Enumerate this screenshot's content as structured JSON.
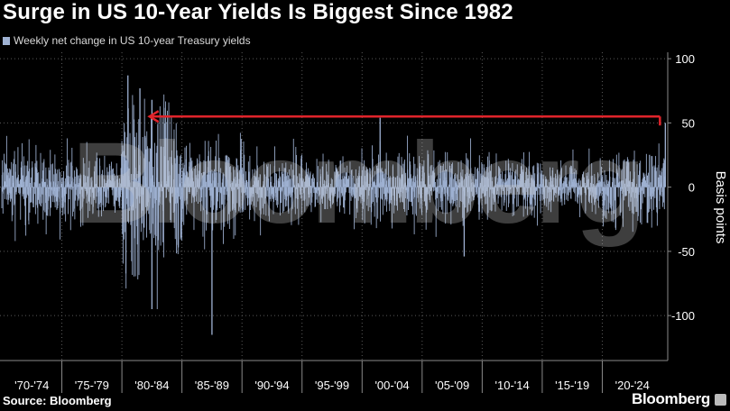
{
  "title": "Surge in US 10-Year Yields Is Biggest Since 1982",
  "source": "Source: Bloomberg",
  "brand": "Bloomberg",
  "watermark": "Bloomberg",
  "colors": {
    "bars": "#9fb2d3",
    "arrow": "#e0242b",
    "grid": "#5a5a5a",
    "background": "#000000"
  },
  "chart_data": {
    "type": "bar",
    "legend": "Weekly net change in US 10-year Treasury yields",
    "legend_position": "top-left",
    "ylabel": "Basis points",
    "ylim": [
      -135,
      105
    ],
    "yticks": [
      100,
      50,
      0,
      -50,
      -100
    ],
    "xlabel_categories": [
      "'70-'74",
      "'75-'79",
      "'80-'84",
      "'85-'89",
      "'90-'94",
      "'95-'99",
      "'00-'04",
      "'05-'09",
      "'10-'14",
      "'15-'19",
      "'20-'24"
    ],
    "x_range": [
      1970,
      2025.3
    ],
    "grid": true,
    "annotation": {
      "type": "arrow",
      "description": "red arrow from latest weekly surge back to the last comparable surge",
      "from_x": 2025.25,
      "to_x": 1982.0,
      "level": 55
    },
    "series": [
      {
        "name": "Weekly net change in US 10-year Treasury yields",
        "values_by_period": [
          {
            "period": "'70-'74",
            "range": [
              -50,
              45
            ],
            "typical_abs": 14
          },
          {
            "period": "'75-'79",
            "range": [
              -35,
              38
            ],
            "typical_abs": 12
          },
          {
            "period": "'80-'84",
            "range": [
              -95,
              87
            ],
            "typical_abs": 30
          },
          {
            "period": "'85-'89",
            "range": [
              -115,
              52
            ],
            "typical_abs": 16
          },
          {
            "period": "'90-'94",
            "range": [
              -40,
              40
            ],
            "typical_abs": 13
          },
          {
            "period": "'95-'99",
            "range": [
              -35,
              42
            ],
            "typical_abs": 11
          },
          {
            "period": "'00-'04",
            "range": [
              -40,
              54
            ],
            "typical_abs": 14
          },
          {
            "period": "'05-'09",
            "range": [
              -54,
              38
            ],
            "typical_abs": 12
          },
          {
            "period": "'10-'14",
            "range": [
              -30,
              40
            ],
            "typical_abs": 11
          },
          {
            "period": "'15-'19",
            "range": [
              -25,
              40
            ],
            "typical_abs": 9
          },
          {
            "period": "'20-'24",
            "range": [
              -35,
              34
            ],
            "typical_abs": 13
          }
        ],
        "notable_points": [
          {
            "date": "1980",
            "value": 87
          },
          {
            "date": "1981",
            "value": 77
          },
          {
            "date": "1982",
            "value": 68
          },
          {
            "date": "1982",
            "value": -95
          },
          {
            "date": "1987",
            "value": -115
          },
          {
            "date": "2001",
            "value": 54
          },
          {
            "date": "2008",
            "value": -54
          },
          {
            "date": "2025-04",
            "value": 50
          }
        ]
      }
    ]
  }
}
